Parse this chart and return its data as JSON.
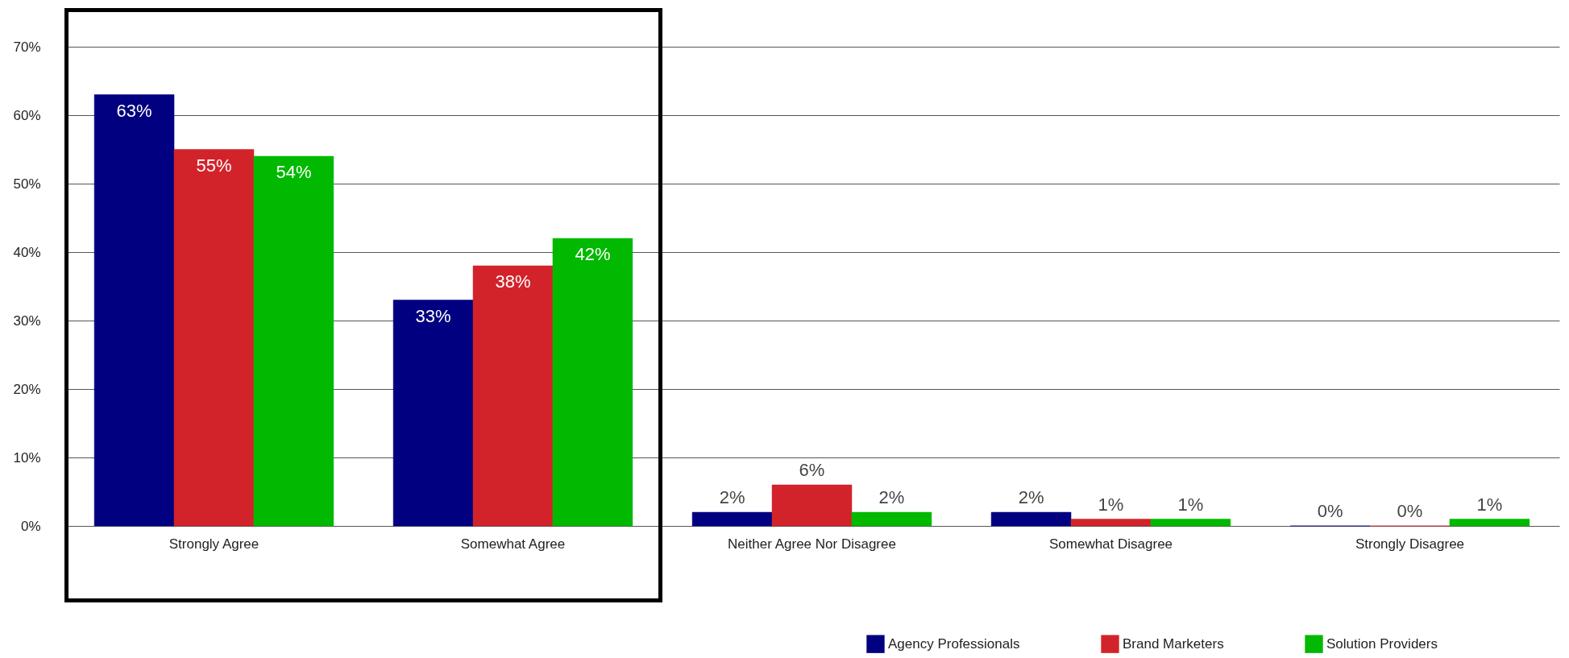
{
  "chart_data": {
    "type": "bar",
    "categories": [
      "Strongly Agree",
      "Somewhat Agree",
      "Neither Agree Nor Disagree",
      "Somewhat Disagree",
      "Strongly Disagree"
    ],
    "series": [
      {
        "name": "Agency Professionals",
        "color": "#000080",
        "values": [
          63,
          33,
          2,
          2,
          0
        ],
        "value_labels": [
          "63%",
          "33%",
          "2%",
          "2%",
          "0%"
        ]
      },
      {
        "name": "Brand Marketers",
        "color": "#d2232a",
        "values": [
          55,
          38,
          6,
          1,
          0
        ],
        "value_labels": [
          "55%",
          "38%",
          "6%",
          "1%",
          "0%"
        ]
      },
      {
        "name": "Solution Providers",
        "color": "#00b900",
        "values": [
          54,
          42,
          2,
          1,
          1
        ],
        "value_labels": [
          "54%",
          "42%",
          "2%",
          "1%",
          "1%"
        ]
      }
    ],
    "ylim": [
      0,
      70
    ],
    "yticks": [
      {
        "value": 0,
        "label": "0%"
      },
      {
        "value": 10,
        "label": "10%"
      },
      {
        "value": 20,
        "label": "20%"
      },
      {
        "value": 30,
        "label": "30%"
      },
      {
        "value": 40,
        "label": "40%"
      },
      {
        "value": 50,
        "label": "50%"
      },
      {
        "value": 60,
        "label": "60%"
      },
      {
        "value": 70,
        "label": "70%"
      }
    ],
    "grid": "y",
    "legend": "bottom right"
  }
}
